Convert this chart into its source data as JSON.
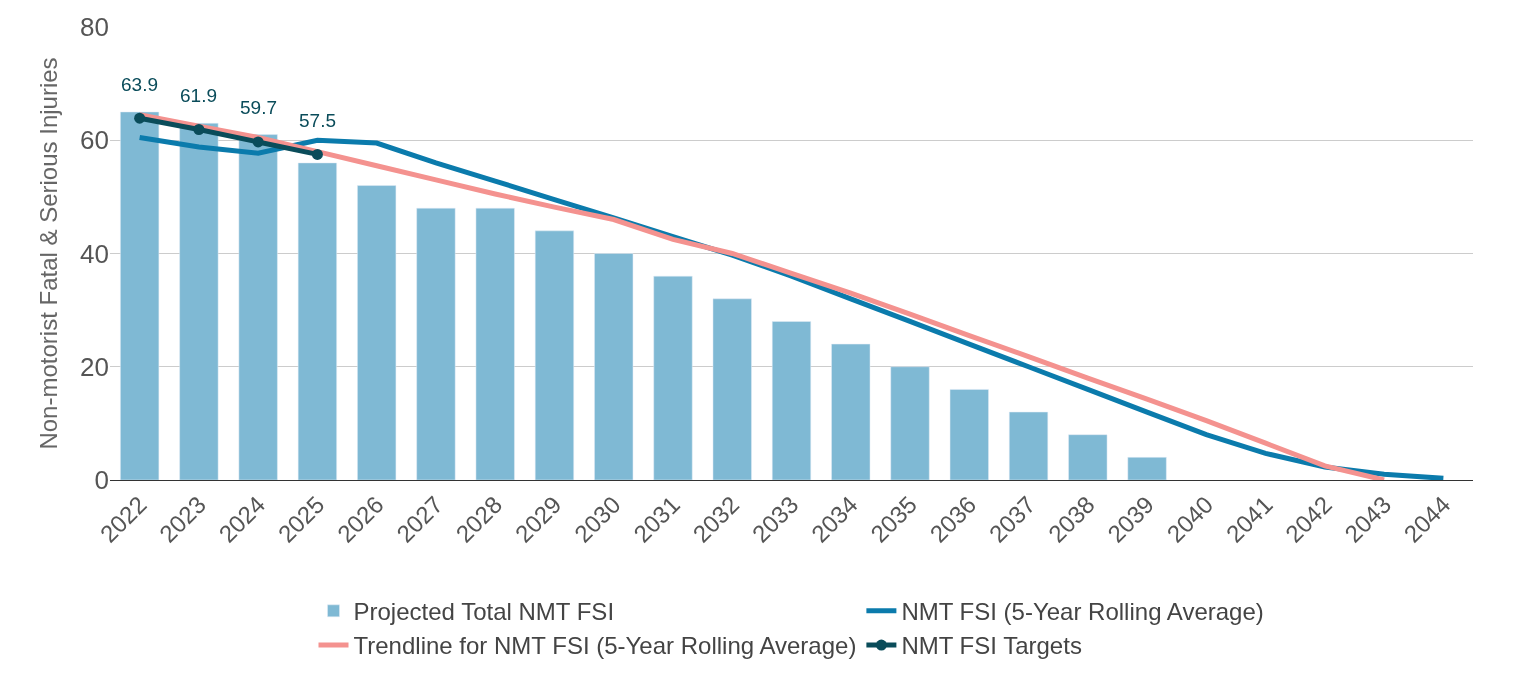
{
  "chart_data": {
    "type": "bar",
    "ylabel": "Non-motorist Fatal & Serious Injuries",
    "categories": [
      "2022",
      "2023",
      "2024",
      "2025",
      "2026",
      "2027",
      "2028",
      "2029",
      "2030",
      "2031",
      "2032",
      "2033",
      "2034",
      "2035",
      "2036",
      "2037",
      "2038",
      "2039",
      "2040",
      "2041",
      "2042",
      "2043",
      "2044"
    ],
    "series": [
      {
        "name": "Projected Total NMT FSI",
        "color": "#7fb9d4",
        "values": [
          65,
          63,
          61,
          56,
          52,
          48,
          48,
          44,
          40,
          36,
          32,
          28,
          24,
          20,
          16,
          12,
          8,
          4,
          null,
          null,
          null,
          null,
          null
        ]
      },
      {
        "name": "NMT FSI (5-Year Rolling Average)",
        "type": "line",
        "color": "#0b7bac",
        "marker": "none",
        "values": [
          60.5,
          58.8,
          57.7,
          60,
          59.5,
          56,
          52.8,
          49.5,
          46.3,
          43,
          39.7,
          36,
          32,
          28,
          24,
          20,
          16,
          12,
          8,
          4.7,
          2.3,
          1,
          0.3
        ]
      },
      {
        "name": "Trendline for NMT FSI (5-Year Rolling Average)",
        "type": "line",
        "color": "#f4928f",
        "marker": "none",
        "values": [
          64.5,
          62.5,
          60.5,
          58,
          55.5,
          53,
          50.5,
          48.2,
          46,
          42.5,
          40,
          36.5,
          33,
          29.3,
          25.5,
          21.8,
          18,
          14.3,
          10.5,
          6.5,
          2.5,
          0,
          null
        ]
      },
      {
        "name": "NMT FSI Targets",
        "type": "line",
        "color": "#0a4c5a",
        "marker": "circle",
        "values": [
          63.9,
          61.9,
          59.7,
          57.5,
          null,
          null,
          null,
          null,
          null,
          null,
          null,
          null,
          null,
          null,
          null,
          null,
          null,
          null,
          null,
          null,
          null,
          null,
          null
        ],
        "value_labels": [
          "63.9",
          "61.9",
          "59.7",
          "57.5",
          null,
          null,
          null,
          null,
          null,
          null,
          null,
          null,
          null,
          null,
          null,
          null,
          null,
          null,
          null,
          null,
          null,
          null,
          null
        ]
      }
    ],
    "ylim": [
      0,
      80
    ],
    "yticks": [
      0,
      20,
      40,
      60,
      80
    ],
    "grid": "y",
    "legend": "bottom"
  }
}
